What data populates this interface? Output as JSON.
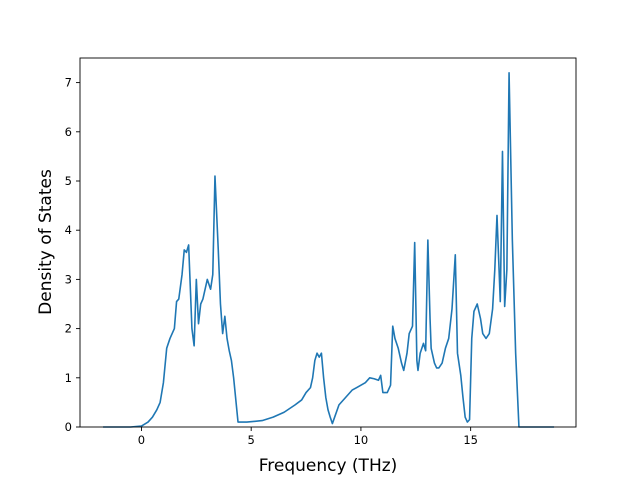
{
  "chart_data": {
    "type": "line",
    "title": "",
    "xlabel": "Frequency (THz)",
    "ylabel": "Density of States",
    "xlim": [
      -2.8,
      19.8
    ],
    "ylim": [
      0,
      7.5
    ],
    "xticks": [
      0,
      5,
      10,
      15
    ],
    "yticks": [
      0,
      1,
      2,
      3,
      4,
      5,
      6,
      7
    ],
    "grid": false,
    "legend": "none",
    "line_color": "#1f77b4",
    "series": [
      {
        "x": [
          -1.75,
          -0.5,
          0.0,
          0.3,
          0.5,
          0.7,
          0.85,
          1.0,
          1.15,
          1.3,
          1.5,
          1.6,
          1.7,
          1.85,
          1.95,
          2.05,
          2.15,
          2.3,
          2.4,
          2.5,
          2.6,
          2.7,
          2.8,
          3.0,
          3.15,
          3.25,
          3.35,
          3.5,
          3.6,
          3.7,
          3.8,
          3.9,
          4.0,
          4.1,
          4.2,
          4.4,
          4.8,
          5.5,
          6.0,
          6.5,
          7.0,
          7.3,
          7.5,
          7.7,
          7.8,
          7.9,
          8.0,
          8.1,
          8.2,
          8.3,
          8.4,
          8.5,
          8.6,
          8.7,
          9.0,
          9.3,
          9.6,
          9.8,
          10.0,
          10.2,
          10.4,
          10.6,
          10.8,
          10.9,
          11.0,
          11.1,
          11.2,
          11.35,
          11.45,
          11.55,
          11.7,
          11.85,
          11.95,
          12.1,
          12.2,
          12.35,
          12.45,
          12.55,
          12.6,
          12.7,
          12.85,
          12.95,
          13.05,
          13.15,
          13.2,
          13.35,
          13.45,
          13.55,
          13.7,
          13.85,
          14.0,
          14.15,
          14.3,
          14.4,
          14.55,
          14.65,
          14.75,
          14.85,
          14.95,
          15.05,
          15.15,
          15.3,
          15.45,
          15.55,
          15.7,
          15.85,
          16.0,
          16.1,
          16.2,
          16.35,
          16.45,
          16.55,
          16.65,
          16.75,
          16.9,
          17.05,
          17.2,
          18.8
        ],
        "values": [
          0.0,
          0.0,
          0.02,
          0.1,
          0.2,
          0.35,
          0.5,
          0.9,
          1.6,
          1.8,
          2.0,
          2.55,
          2.6,
          3.1,
          3.6,
          3.55,
          3.7,
          2.0,
          1.65,
          3.0,
          2.1,
          2.5,
          2.6,
          3.0,
          2.8,
          3.1,
          5.1,
          3.6,
          2.5,
          1.9,
          2.25,
          1.8,
          1.55,
          1.35,
          1.0,
          0.1,
          0.1,
          0.13,
          0.2,
          0.3,
          0.45,
          0.55,
          0.7,
          0.8,
          1.0,
          1.35,
          1.5,
          1.42,
          1.5,
          1.0,
          0.6,
          0.35,
          0.2,
          0.07,
          0.45,
          0.6,
          0.75,
          0.8,
          0.85,
          0.9,
          1.0,
          0.98,
          0.95,
          1.05,
          0.7,
          0.7,
          0.7,
          0.85,
          2.05,
          1.8,
          1.6,
          1.3,
          1.15,
          1.5,
          1.9,
          2.05,
          3.75,
          1.35,
          1.15,
          1.5,
          1.7,
          1.55,
          3.8,
          2.2,
          1.6,
          1.3,
          1.2,
          1.2,
          1.3,
          1.6,
          1.8,
          2.4,
          3.5,
          1.5,
          1.05,
          0.6,
          0.2,
          0.1,
          0.15,
          1.8,
          2.35,
          2.5,
          2.2,
          1.9,
          1.8,
          1.9,
          2.4,
          3.2,
          4.3,
          2.55,
          5.6,
          2.45,
          3.2,
          7.2,
          3.8,
          1.5,
          0.0,
          0.0
        ]
      }
    ]
  }
}
